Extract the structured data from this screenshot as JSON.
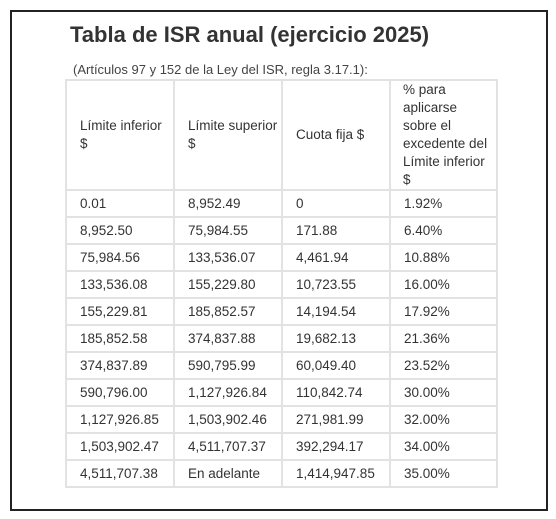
{
  "title": "Tabla de ISR anual (ejercicio 2025)",
  "caption": "(Artículos 97 y 152 de la Ley del ISR, regla 3.17.1):",
  "table": {
    "headers": [
      "Límite inferior $",
      "Límite superior $",
      "Cuota fija $",
      "% para aplicarse sobre el excedente del Límite inferior $"
    ],
    "rows": [
      [
        "0.01",
        "8,952.49",
        "0",
        "1.92%"
      ],
      [
        "8,952.50",
        "75,984.55",
        "171.88",
        "6.40%"
      ],
      [
        "75,984.56",
        "133,536.07",
        "4,461.94",
        "10.88%"
      ],
      [
        "133,536.08",
        "155,229.80",
        "10,723.55",
        "16.00%"
      ],
      [
        "155,229.81",
        "185,852.57",
        "14,194.54",
        "17.92%"
      ],
      [
        "185,852.58",
        "374,837.88",
        "19,682.13",
        "21.36%"
      ],
      [
        "374,837.89",
        "590,795.99",
        "60,049.40",
        "23.52%"
      ],
      [
        "590,796.00",
        "1,127,926.84",
        "110,842.74",
        "30.00%"
      ],
      [
        "1,127,926.85",
        "1,503,902.46",
        "271,981.99",
        "32.00%"
      ],
      [
        "1,503,902.47",
        "4,511,707.37",
        "392,294.17",
        "34.00%"
      ],
      [
        "4,511,707.38",
        "En adelante",
        "1,414,947.85",
        "35.00%"
      ]
    ]
  }
}
